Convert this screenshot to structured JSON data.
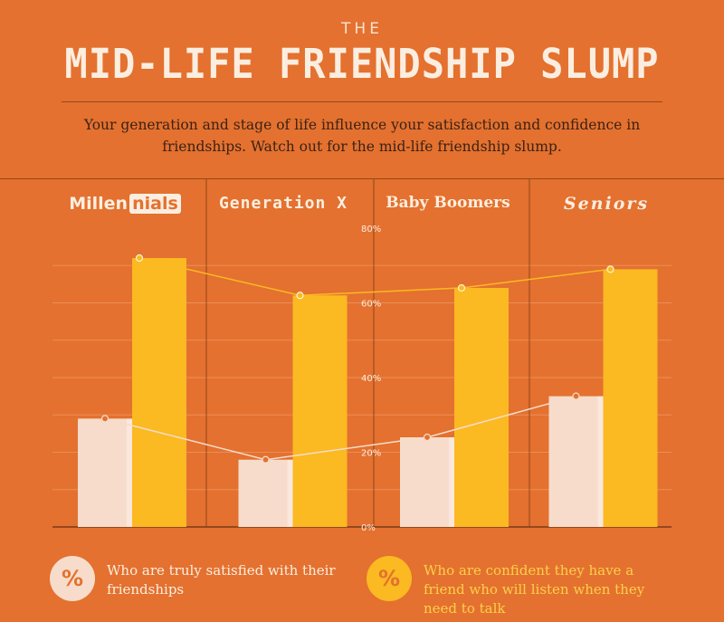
{
  "header": {
    "eyebrow": "THE",
    "title": "MID-LIFE FRIENDSHIP SLUMP",
    "subtitle": "Your generation and stage of life influence your satisfaction and confidence in friendships. Watch out for the mid-life friendship slump."
  },
  "generations": {
    "millennials_a": "Millen",
    "millennials_b": "nials",
    "genx": "Generation X",
    "boomers": "Baby Boomers",
    "seniors": "Seniors"
  },
  "chart_data": {
    "type": "bar",
    "categories": [
      "Millennials",
      "Generation X",
      "Baby Boomers",
      "Seniors"
    ],
    "ylim": [
      0,
      80
    ],
    "yticks": [
      "0%",
      "20%",
      "40%",
      "60%",
      "80%"
    ],
    "ytick_values": [
      0,
      20,
      40,
      60,
      80
    ],
    "grid": true,
    "legend_position": "bottom",
    "series": [
      {
        "name": "Who are truly satisfied with their friendships",
        "values": [
          29,
          18,
          24,
          35
        ],
        "color": "#f7dccb"
      },
      {
        "name": "Who are confident they have a friend who will listen when they need to talk",
        "values": [
          72,
          62,
          64,
          69
        ],
        "color": "#fbb922"
      }
    ]
  },
  "legend": {
    "badge_symbol": "%",
    "satisfied_label": "Who are truly satisfied with their friendships",
    "confident_label": "Who are confident they have a friend who will listen when they need to talk"
  },
  "colors": {
    "background": "#e4712f",
    "satisfied": "#f7dccb",
    "confident": "#fbb922"
  }
}
